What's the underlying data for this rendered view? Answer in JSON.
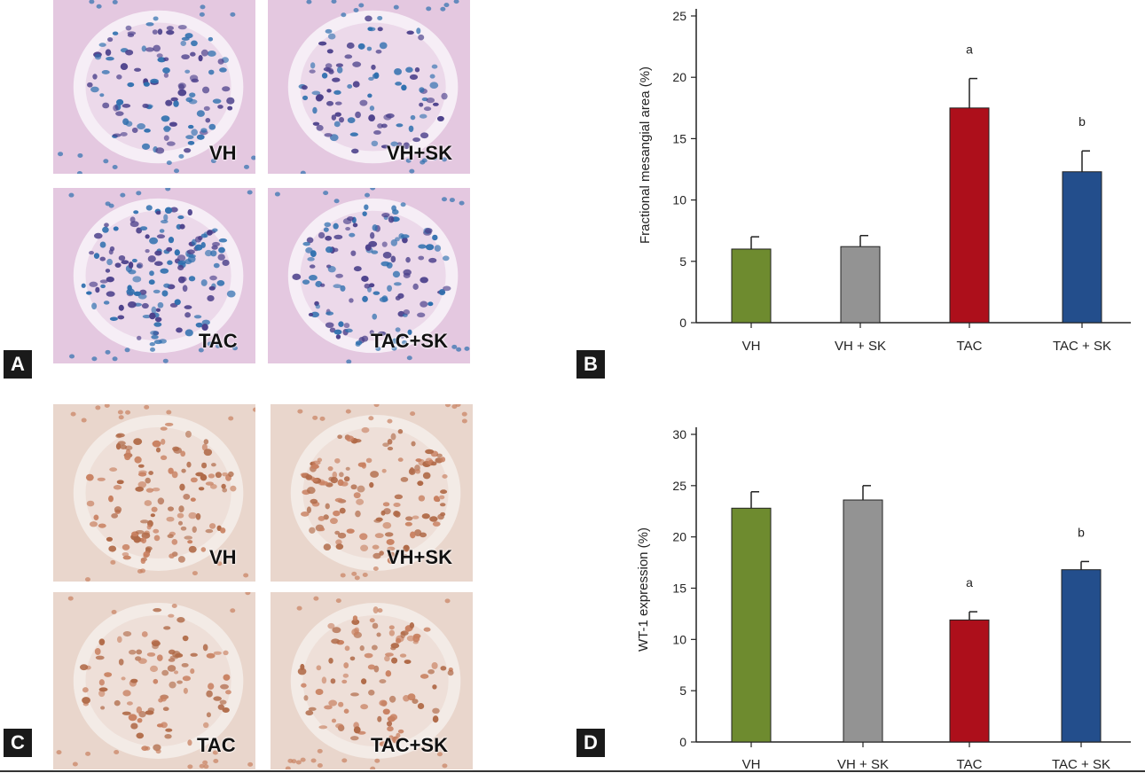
{
  "panels": {
    "a": {
      "letter": "A",
      "labels": [
        "VH",
        "VH+SK",
        "TAC",
        "TAC+SK"
      ],
      "colors": {
        "bg": "#e4c8e0",
        "lumen": "#f6eef6",
        "nucleus": "#4a3f8a",
        "nucleus2": "#2e6fae"
      }
    },
    "b": {
      "letter": "B"
    },
    "c": {
      "letter": "C",
      "labels": [
        "VH",
        "VH+SK",
        "TAC",
        "TAC+SK"
      ],
      "colors": {
        "bg": "#e9d6cc",
        "lumen": "#f3ebe6",
        "nucleus": "#b06a48",
        "nucleus2": "#c88060"
      }
    },
    "d": {
      "letter": "D"
    }
  },
  "chart_data": [
    {
      "type": "bar",
      "categories": [
        "VH",
        "VH + SK",
        "TAC",
        "TAC + SK"
      ],
      "values": [
        6.0,
        6.2,
        17.5,
        12.3
      ],
      "errors": [
        1.0,
        0.9,
        2.4,
        1.7
      ],
      "annotations": [
        "",
        "",
        "a",
        "b"
      ],
      "colors": [
        "#6e8b2f",
        "#939393",
        "#ad0f1b",
        "#234e8c"
      ],
      "title": "",
      "xlabel": "",
      "ylabel": "Fractional mesangial area (%)",
      "ylim": [
        0,
        25
      ],
      "yticks": [
        "0",
        "5",
        "10",
        "15",
        "20",
        "25"
      ],
      "grid": false
    },
    {
      "type": "bar",
      "categories": [
        "VH",
        "VH + SK",
        "TAC",
        "TAC + SK"
      ],
      "values": [
        22.8,
        23.6,
        11.9,
        16.8
      ],
      "errors": [
        1.6,
        1.4,
        0.8,
        0.8
      ],
      "annotations": [
        "",
        "",
        "a",
        "b"
      ],
      "colors": [
        "#6e8b2f",
        "#939393",
        "#ad0f1b",
        "#234e8c"
      ],
      "title": "",
      "xlabel": "",
      "ylabel": "WT-1 expression (%)",
      "ylim": [
        0,
        30
      ],
      "yticks": [
        "0",
        "5",
        "10",
        "15",
        "20",
        "25",
        "30"
      ],
      "grid": false
    }
  ]
}
